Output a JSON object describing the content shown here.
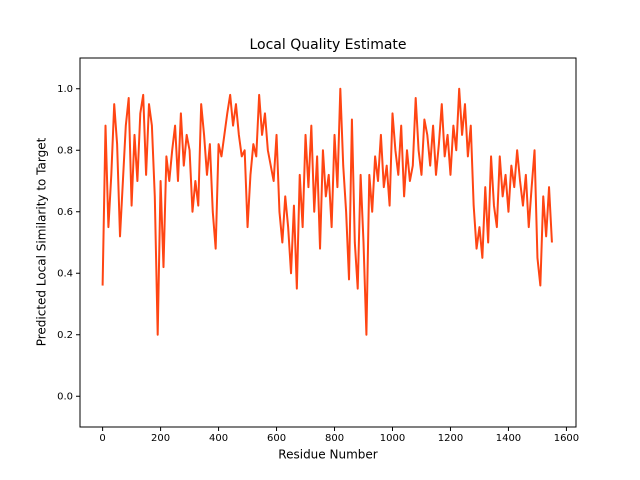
{
  "chart_data": {
    "type": "line",
    "title": "Local Quality Estimate",
    "x_label": "Residue Number",
    "y_label": "Predicted Local Similarity to Target",
    "xlim": [
      -78,
      1633
    ],
    "ylim": [
      -0.1,
      1.1
    ],
    "xticks": [
      0,
      200,
      400,
      600,
      800,
      1000,
      1200,
      1400,
      1600
    ],
    "yticks": [
      {
        "value": 0,
        "label": "0.0"
      },
      0.2,
      0.4,
      0.6,
      0.8,
      {
        "value": 1,
        "label": "1.0"
      }
    ],
    "grid": false,
    "x": [
      0,
      10,
      20,
      30,
      40,
      50,
      60,
      70,
      80,
      90,
      100,
      110,
      120,
      130,
      140,
      150,
      160,
      170,
      180,
      190,
      200,
      210,
      220,
      230,
      240,
      250,
      260,
      270,
      280,
      290,
      300,
      310,
      320,
      330,
      340,
      350,
      360,
      370,
      380,
      390,
      400,
      410,
      420,
      430,
      440,
      450,
      460,
      470,
      480,
      490,
      500,
      510,
      520,
      530,
      540,
      550,
      560,
      570,
      580,
      590,
      600,
      610,
      620,
      630,
      640,
      650,
      660,
      670,
      680,
      690,
      700,
      710,
      720,
      730,
      740,
      750,
      760,
      770,
      780,
      790,
      800,
      810,
      820,
      830,
      840,
      850,
      860,
      870,
      880,
      890,
      900,
      910,
      920,
      930,
      940,
      950,
      960,
      970,
      980,
      990,
      1000,
      1010,
      1020,
      1030,
      1040,
      1050,
      1060,
      1070,
      1080,
      1090,
      1100,
      1110,
      1120,
      1130,
      1140,
      1150,
      1160,
      1170,
      1180,
      1190,
      1200,
      1210,
      1220,
      1230,
      1240,
      1250,
      1260,
      1270,
      1280,
      1290,
      1300,
      1310,
      1320,
      1330,
      1340,
      1350,
      1360,
      1370,
      1380,
      1390,
      1400,
      1410,
      1420,
      1430,
      1440,
      1450,
      1460,
      1470,
      1480,
      1490,
      1500,
      1510,
      1520,
      1530,
      1540,
      1550
    ],
    "series": [
      {
        "color": "#ff4513",
        "values": [
          0.36,
          0.88,
          0.55,
          0.72,
          0.95,
          0.82,
          0.52,
          0.7,
          0.88,
          0.97,
          0.62,
          0.85,
          0.7,
          0.92,
          0.98,
          0.72,
          0.95,
          0.88,
          0.65,
          0.2,
          0.7,
          0.42,
          0.78,
          0.7,
          0.8,
          0.88,
          0.7,
          0.92,
          0.75,
          0.85,
          0.8,
          0.6,
          0.7,
          0.62,
          0.95,
          0.85,
          0.72,
          0.82,
          0.6,
          0.48,
          0.82,
          0.78,
          0.85,
          0.92,
          0.98,
          0.88,
          0.95,
          0.85,
          0.78,
          0.8,
          0.55,
          0.72,
          0.82,
          0.78,
          0.98,
          0.85,
          0.92,
          0.8,
          0.75,
          0.7,
          0.85,
          0.6,
          0.5,
          0.65,
          0.55,
          0.4,
          0.62,
          0.35,
          0.72,
          0.55,
          0.85,
          0.68,
          0.88,
          0.6,
          0.78,
          0.48,
          0.8,
          0.65,
          0.72,
          0.55,
          0.85,
          0.68,
          1.0,
          0.75,
          0.6,
          0.38,
          0.9,
          0.5,
          0.35,
          0.72,
          0.5,
          0.2,
          0.72,
          0.6,
          0.78,
          0.7,
          0.85,
          0.68,
          0.75,
          0.62,
          0.92,
          0.8,
          0.72,
          0.88,
          0.65,
          0.8,
          0.7,
          0.75,
          0.97,
          0.8,
          0.72,
          0.9,
          0.85,
          0.75,
          0.88,
          0.72,
          0.82,
          0.95,
          0.78,
          0.85,
          0.72,
          0.88,
          0.8,
          1.0,
          0.85,
          0.95,
          0.78,
          0.88,
          0.62,
          0.48,
          0.55,
          0.45,
          0.68,
          0.5,
          0.78,
          0.62,
          0.55,
          0.78,
          0.65,
          0.72,
          0.6,
          0.75,
          0.68,
          0.8,
          0.7,
          0.62,
          0.72,
          0.55,
          0.68,
          0.8,
          0.45,
          0.36,
          0.65,
          0.52,
          0.68,
          0.5
        ]
      }
    ]
  }
}
